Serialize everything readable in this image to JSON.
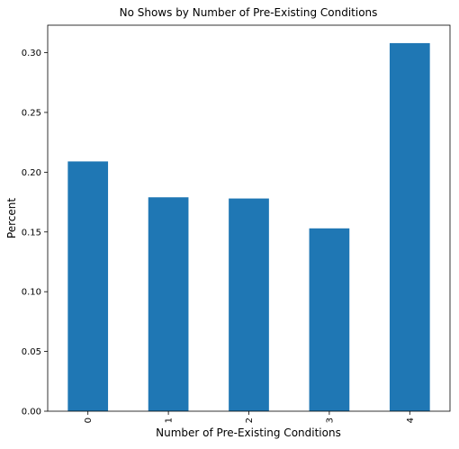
{
  "chart_data": {
    "type": "bar",
    "title": "No Shows by Number of Pre-Existing Conditions",
    "xlabel": "Number of Pre-Existing Conditions",
    "ylabel": "Percent",
    "categories": [
      "0",
      "1",
      "2",
      "3",
      "4"
    ],
    "values": [
      0.209,
      0.179,
      0.178,
      0.153,
      0.308
    ],
    "ylim": [
      0,
      0.323
    ],
    "yticks": [
      "0.00",
      "0.05",
      "0.10",
      "0.15",
      "0.20",
      "0.25",
      "0.30"
    ],
    "bar_color": "#1f77b4",
    "grid": false,
    "legend": "none"
  }
}
